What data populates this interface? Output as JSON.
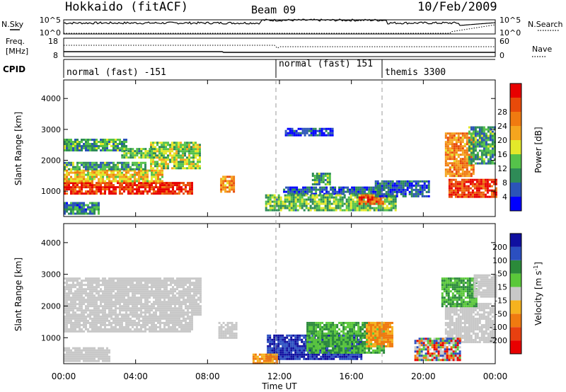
{
  "header": {
    "title": "Hokkaido (fitACF)",
    "beam": "Beam 09",
    "date": "10/Feb/2009"
  },
  "nsky_panel": {
    "left_label": "N.Sky",
    "right_label": "N.Search",
    "left_ticks": [
      "10^5",
      "10^0"
    ],
    "right_ticks": [
      "10^5",
      "10^0"
    ]
  },
  "freq_panel": {
    "left_label_line1": "Freq.",
    "left_label_line2": "[MHz]",
    "left_ticks": [
      "18",
      "8"
    ],
    "right_label": "Nave",
    "right_ticks": [
      "60",
      "0"
    ]
  },
  "cpid_panel": {
    "label": "CPID",
    "segments": [
      {
        "label": "normal (fast) -151"
      },
      {
        "label": "normal (fast) 151"
      },
      {
        "label": "themis 3300"
      }
    ]
  },
  "chart_data": [
    {
      "type": "heatmap",
      "name": "power",
      "ylabel": "Slant Range [km]",
      "y_ticks": [
        "1000",
        "2000",
        "3000",
        "4000"
      ],
      "ylim": [
        180,
        4600
      ],
      "colorbar": {
        "label": "Power [dB]",
        "ticks": [
          "4",
          "8",
          "12",
          "16",
          "20",
          "24",
          "28"
        ],
        "range": [
          0,
          32
        ],
        "colors": [
          "#0000ff",
          "#2b54b8",
          "#2e8b57",
          "#55c24a",
          "#e3e82a",
          "#f5a51e",
          "#f07a10",
          "#e84a0a",
          "#e80000"
        ]
      },
      "regions": [
        {
          "t0": 0.0,
          "t1": 7.2,
          "r0": 900,
          "r1": 1300,
          "level": 28
        },
        {
          "t0": 0.0,
          "t1": 5.5,
          "r0": 1300,
          "r1": 1700,
          "level": 18
        },
        {
          "t0": 0.0,
          "t1": 4.5,
          "r0": 1700,
          "r1": 1950,
          "level": 10
        },
        {
          "t0": 4.8,
          "t1": 7.6,
          "r0": 1750,
          "r1": 2600,
          "level": 14
        },
        {
          "t0": 0.0,
          "t1": 3.5,
          "r0": 2300,
          "r1": 2700,
          "level": 10
        },
        {
          "t0": 3.2,
          "t1": 5.0,
          "r0": 2100,
          "r1": 2400,
          "level": 12
        },
        {
          "t0": 0.0,
          "t1": 2.0,
          "r0": 300,
          "r1": 650,
          "level": 8
        },
        {
          "t0": 8.7,
          "t1": 9.5,
          "r0": 1000,
          "r1": 1500,
          "level": 22
        },
        {
          "t0": 13.8,
          "t1": 14.8,
          "r0": 1200,
          "r1": 1600,
          "level": 10
        },
        {
          "t0": 12.2,
          "t1": 17.8,
          "r0": 900,
          "r1": 1150,
          "level": 6
        },
        {
          "t0": 11.2,
          "t1": 18.5,
          "r0": 400,
          "r1": 900,
          "level": 12
        },
        {
          "t0": 16.4,
          "t1": 17.7,
          "r0": 600,
          "r1": 900,
          "level": 25
        },
        {
          "t0": 17.3,
          "t1": 20.3,
          "r0": 850,
          "r1": 1350,
          "level": 6
        },
        {
          "t0": 21.4,
          "t1": 24.0,
          "r0": 850,
          "r1": 1400,
          "level": 28
        },
        {
          "t0": 21.2,
          "t1": 22.8,
          "r0": 1500,
          "r1": 2900,
          "level": 22
        },
        {
          "t0": 22.5,
          "t1": 24.0,
          "r0": 1900,
          "r1": 3100,
          "level": 10
        },
        {
          "t0": 12.3,
          "t1": 15.0,
          "r0": 2800,
          "r1": 3050,
          "level": 4
        }
      ]
    },
    {
      "type": "heatmap",
      "name": "velocity",
      "ylabel": "Slant Range [km]",
      "y_ticks": [
        "1000",
        "2000",
        "3000",
        "4000"
      ],
      "ylim": [
        180,
        4600
      ],
      "colorbar": {
        "label_prefix": "Velocity [m s",
        "label_suffix": "]",
        "label_superscript": "-1",
        "ticks": [
          "200",
          "100",
          "50",
          "15",
          "-15",
          "-50",
          "-100",
          "-200"
        ],
        "colors": [
          "#1010a0",
          "#2b4fc0",
          "#2b8a3a",
          "#5ac83a",
          "#c8c8c8",
          "#f5b21e",
          "#f07a10",
          "#e84010",
          "#e80000"
        ]
      },
      "regions": [
        {
          "t0": 0.0,
          "t1": 7.2,
          "r0": 1200,
          "r1": 1700,
          "cls": "gray"
        },
        {
          "t0": 0.0,
          "t1": 7.6,
          "r0": 1700,
          "r1": 2900,
          "cls": "gray"
        },
        {
          "t0": 0.0,
          "t1": 2.5,
          "r0": 250,
          "r1": 700,
          "cls": "gray"
        },
        {
          "t0": 8.6,
          "t1": 9.6,
          "r0": 1000,
          "r1": 1500,
          "cls": "gray"
        },
        {
          "t0": 11.3,
          "t1": 16.5,
          "r0": 300,
          "r1": 1100,
          "cls": "blue"
        },
        {
          "t0": 13.5,
          "t1": 17.8,
          "r0": 550,
          "r1": 1500,
          "cls": "green"
        },
        {
          "t0": 16.8,
          "t1": 18.3,
          "r0": 700,
          "r1": 1500,
          "cls": "orange"
        },
        {
          "t0": 10.5,
          "t1": 11.8,
          "r0": 200,
          "r1": 500,
          "cls": "orange"
        },
        {
          "t0": 21.2,
          "t1": 24.0,
          "r0": 850,
          "r1": 2100,
          "cls": "gray"
        },
        {
          "t0": 21.0,
          "t1": 23.0,
          "r0": 2000,
          "r1": 2900,
          "cls": "green"
        },
        {
          "t0": 22.8,
          "t1": 24.0,
          "r0": 2300,
          "r1": 3000,
          "cls": "gray"
        },
        {
          "t0": 19.5,
          "t1": 22.0,
          "r0": 300,
          "r1": 1000,
          "cls": "mixed"
        }
      ]
    }
  ],
  "x_axis": {
    "label": "Time UT",
    "ticks": [
      "00:00",
      "04:00",
      "08:00",
      "12:00",
      "16:00",
      "20:00",
      "00:00"
    ],
    "range_hours": [
      0,
      24
    ]
  },
  "colors": {
    "dashed_boundary": "#999999"
  }
}
